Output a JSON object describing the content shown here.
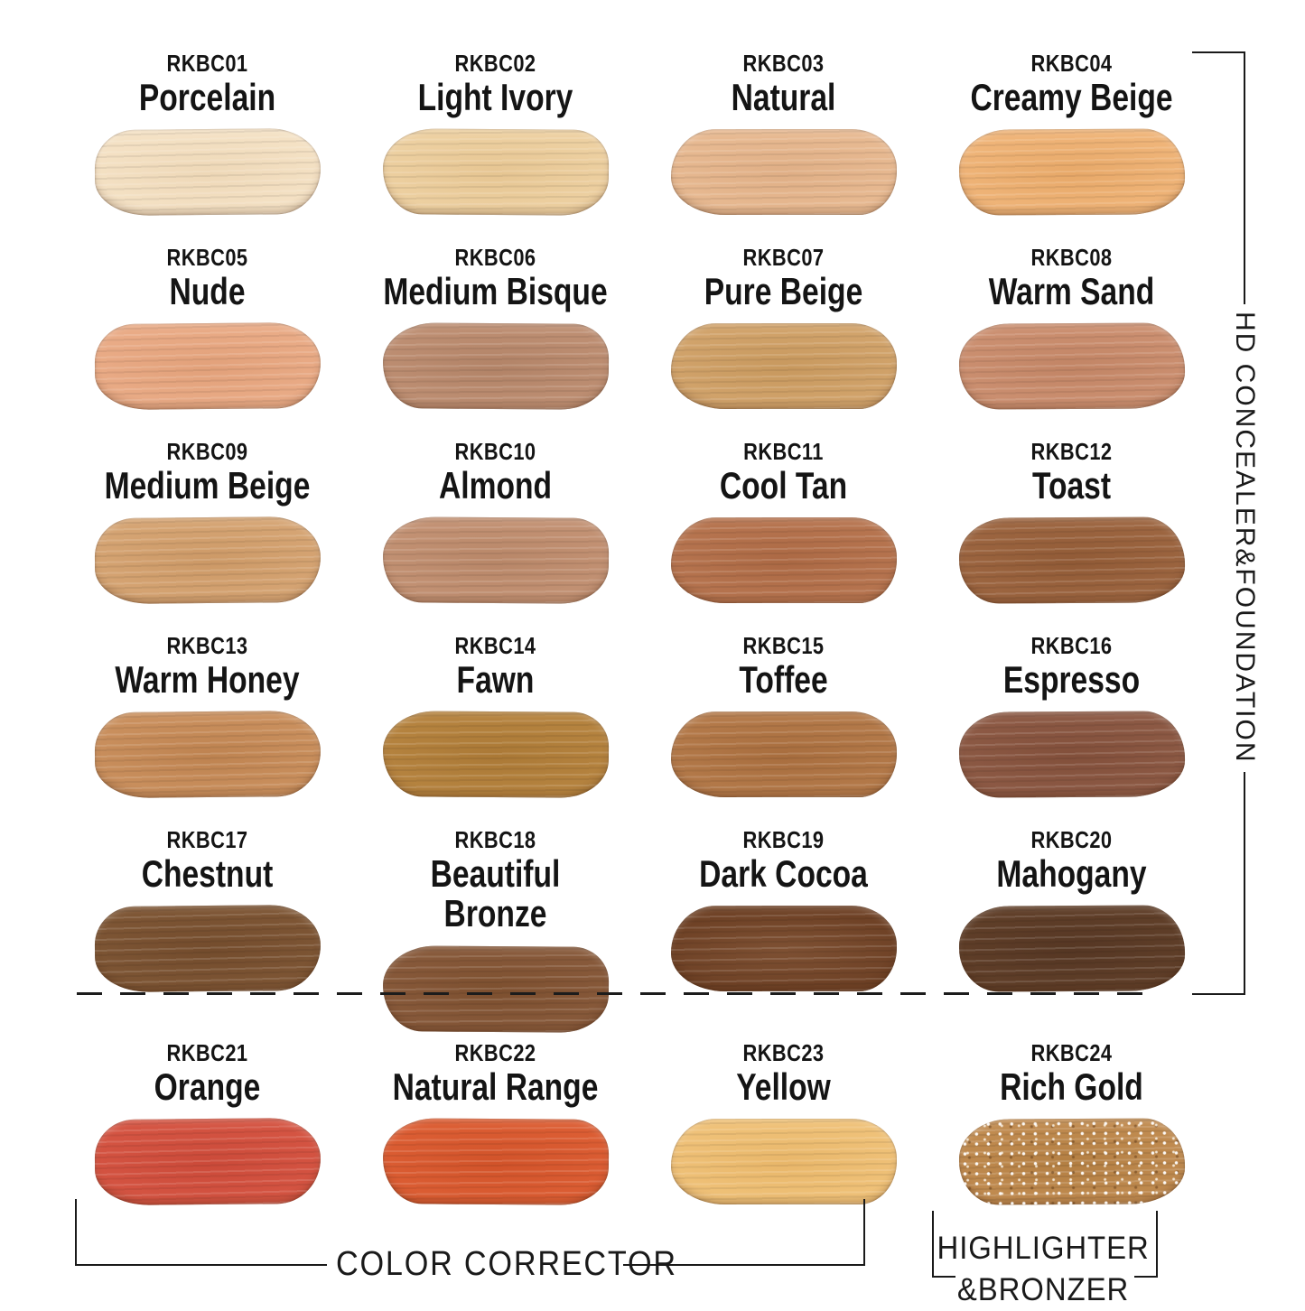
{
  "right_rail": {
    "label": "HD CONCEALER&FOUNDATION"
  },
  "bottom": {
    "color_corrector": "COLOR CORRECTOR",
    "highlighter_line1": "HIGHLIGHTER",
    "highlighter_line2": "&BRONZER"
  },
  "groups": {
    "rows_1_to_5": "HD CONCEALER&FOUNDATION",
    "row_6_cols_1_to_3": "COLOR CORRECTOR",
    "row_6_col_4": "HIGHLIGHTER&BRONZER"
  },
  "swatches": [
    {
      "code": "RKBC01",
      "name": "Porcelain",
      "color": "#f4e1c4",
      "streak_color": "#e9d0ac",
      "sparkle": false
    },
    {
      "code": "RKBC02",
      "name": "Light Ivory",
      "color": "#edd0a1",
      "streak_color": "#e0bc85",
      "sparkle": false
    },
    {
      "code": "RKBC03",
      "name": "Natural",
      "color": "#e7b991",
      "streak_color": "#d9a67c",
      "sparkle": false
    },
    {
      "code": "RKBC04",
      "name": "Creamy Beige",
      "color": "#efb478",
      "streak_color": "#e19f5c",
      "sparkle": false
    },
    {
      "code": "RKBC05",
      "name": "Nude",
      "color": "#e9ab86",
      "streak_color": "#dc9870",
      "sparkle": false
    },
    {
      "code": "RKBC06",
      "name": "Medium Bisque",
      "color": "#bd8e72",
      "streak_color": "#a97a5e",
      "sparkle": false
    },
    {
      "code": "RKBC07",
      "name": "Pure Beige",
      "color": "#d1a36b",
      "streak_color": "#c09053",
      "sparkle": false
    },
    {
      "code": "RKBC08",
      "name": "Warm Sand",
      "color": "#cb8f70",
      "streak_color": "#ba7c5c",
      "sparkle": false
    },
    {
      "code": "RKBC09",
      "name": "Medium Beige",
      "color": "#d5a473",
      "streak_color": "#c5905c",
      "sparkle": false
    },
    {
      "code": "RKBC10",
      "name": "Almond",
      "color": "#c29173",
      "streak_color": "#b07e5f",
      "sparkle": false
    },
    {
      "code": "RKBC11",
      "name": "Cool Tan",
      "color": "#b6744f",
      "streak_color": "#a3603b",
      "sparkle": false
    },
    {
      "code": "RKBC12",
      "name": "Toast",
      "color": "#9c6540",
      "streak_color": "#88522e",
      "sparkle": false
    },
    {
      "code": "RKBC13",
      "name": "Warm Honey",
      "color": "#c98f5d",
      "streak_color": "#b57946",
      "sparkle": false
    },
    {
      "code": "RKBC14",
      "name": "Fawn",
      "color": "#b5833f",
      "streak_color": "#a3712f",
      "sparkle": false
    },
    {
      "code": "RKBC15",
      "name": "Toffee",
      "color": "#b37949",
      "streak_color": "#9f6435",
      "sparkle": false
    },
    {
      "code": "RKBC16",
      "name": "Espresso",
      "color": "#8c5944",
      "streak_color": "#7a4833",
      "sparkle": false
    },
    {
      "code": "RKBC17",
      "name": "Chestnut",
      "color": "#7d5534",
      "streak_color": "#6c4527",
      "sparkle": false
    },
    {
      "code": "RKBC18",
      "name": "Beautiful Bronze",
      "color": "#87593a",
      "streak_color": "#754826",
      "sparkle": false
    },
    {
      "code": "RKBC19",
      "name": "Dark Cocoa",
      "color": "#6f4226",
      "streak_color": "#8a5c3d",
      "sparkle": false
    },
    {
      "code": "RKBC20",
      "name": "Mahogany",
      "color": "#5f3e28",
      "streak_color": "#4e3120",
      "sparkle": false
    },
    {
      "code": "RKBC21",
      "name": "Orange",
      "color": "#d45442",
      "streak_color": "#c44232",
      "sparkle": false
    },
    {
      "code": "RKBC22",
      "name": "Natural Range",
      "color": "#db5d33",
      "streak_color": "#ca4b22",
      "sparkle": false
    },
    {
      "code": "RKBC23",
      "name": "Yellow",
      "color": "#efc178",
      "streak_color": "#e3ae5e",
      "sparkle": false
    },
    {
      "code": "RKBC24",
      "name": "Rich Gold",
      "color": "#c08b50",
      "streak_color": "#a97538",
      "sparkle": true
    }
  ]
}
